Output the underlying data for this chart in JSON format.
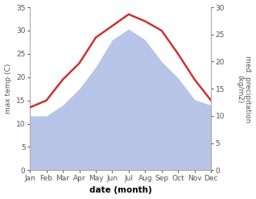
{
  "months": [
    "Jan",
    "Feb",
    "Mar",
    "Apr",
    "May",
    "Jun",
    "Jul",
    "Aug",
    "Sep",
    "Oct",
    "Nov",
    "Dec"
  ],
  "temperature": [
    13.5,
    15.0,
    19.5,
    23.0,
    28.5,
    31.0,
    33.5,
    32.0,
    30.0,
    25.0,
    19.5,
    15.0
  ],
  "precipitation": [
    10.0,
    10.0,
    12.0,
    15.0,
    19.0,
    24.0,
    26.0,
    24.0,
    20.0,
    17.0,
    13.0,
    12.0
  ],
  "temp_color": "#cc3333",
  "precip_color": "#b8c4e8",
  "left_ylabel": "max temp (C)",
  "right_ylabel": "med. precipitation\n(kg/m2)",
  "xlabel": "date (month)",
  "left_ylim": [
    0,
    35
  ],
  "right_ylim": [
    0,
    30
  ],
  "left_yticks": [
    0,
    5,
    10,
    15,
    20,
    25,
    30,
    35
  ],
  "right_yticks": [
    0,
    5,
    10,
    15,
    20,
    25,
    30
  ],
  "bg_color": "#ffffff",
  "line_width": 1.8
}
